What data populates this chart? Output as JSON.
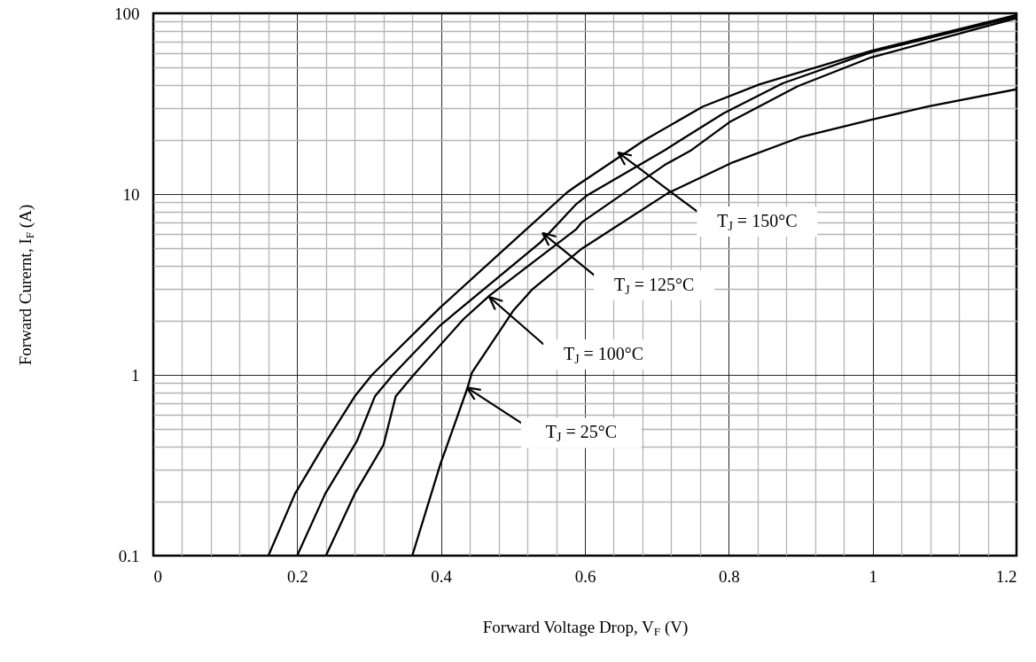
{
  "chart_data": {
    "type": "line",
    "xlabel": "Forward Voltage Drop, V$_{F}$ (V)",
    "ylabel": "Forward Curernt, I$_{F}$ (A)",
    "xlim": [
      0,
      1.2
    ],
    "xticks": [
      0,
      0.2,
      0.4,
      0.6,
      0.8,
      1,
      1.2
    ],
    "ylim": [
      0.1,
      100
    ],
    "yticks": [
      0.1,
      1,
      10,
      100
    ],
    "log": "y",
    "grid": true,
    "marker": "none",
    "line_style": "solid",
    "series": [
      {
        "color": "#000000",
        "x": [
          0.16,
          0.197,
          0.239,
          0.28,
          0.304,
          0.399,
          0.517,
          0.575,
          0.588,
          0.683,
          0.764,
          0.843,
          0.998,
          1.2
        ],
        "values": [
          0.1,
          0.22,
          0.42,
          0.76,
          1,
          2.36,
          6.3,
          10.2,
          11.1,
          19.9,
          30.5,
          40.5,
          62,
          98
        ]
      },
      {
        "color": "#000000",
        "x": [
          0.2,
          0.239,
          0.283,
          0.308,
          0.333,
          0.399,
          0.538,
          0.588,
          0.604,
          0.711,
          0.793,
          0.875,
          0.998,
          1.2
        ],
        "values": [
          0.1,
          0.22,
          0.43,
          0.76,
          1,
          1.88,
          5.4,
          8.8,
          9.9,
          17.5,
          28,
          41,
          61,
          96
        ]
      },
      {
        "color": "#000000",
        "x": [
          0.24,
          0.28,
          0.32,
          0.337,
          0.362,
          0.431,
          0.468,
          0.588,
          0.596,
          0.711,
          0.748,
          0.801,
          0.896,
          0.998,
          1.2
        ],
        "values": [
          0.1,
          0.22,
          0.41,
          0.76,
          1,
          2.03,
          2.76,
          6.4,
          7,
          14.5,
          17.5,
          25,
          39.5,
          57,
          94
        ]
      },
      {
        "color": "#000000",
        "x": [
          0.36,
          0.399,
          0.436,
          0.443,
          0.501,
          0.526,
          0.596,
          0.715,
          0.806,
          0.899,
          0.998,
          1.077,
          1.2
        ],
        "values": [
          0.1,
          0.32,
          0.83,
          1.03,
          2.28,
          2.95,
          5,
          10.1,
          15,
          20.6,
          25.8,
          30.5,
          38
        ]
      }
    ],
    "annotations": [
      {
        "text": "T$_{J}$ = 150°C",
        "x": 0.646,
        "y": 17
      },
      {
        "text": "T$_{J}$ = 125°C",
        "x": 0.541,
        "y": 6.1
      },
      {
        "text": "T$_{J}$ = 100°C",
        "x": 0.467,
        "y": 2.7
      },
      {
        "text": "T$_{J}$ = 25°C",
        "x": 0.436,
        "y": 0.85
      }
    ]
  }
}
